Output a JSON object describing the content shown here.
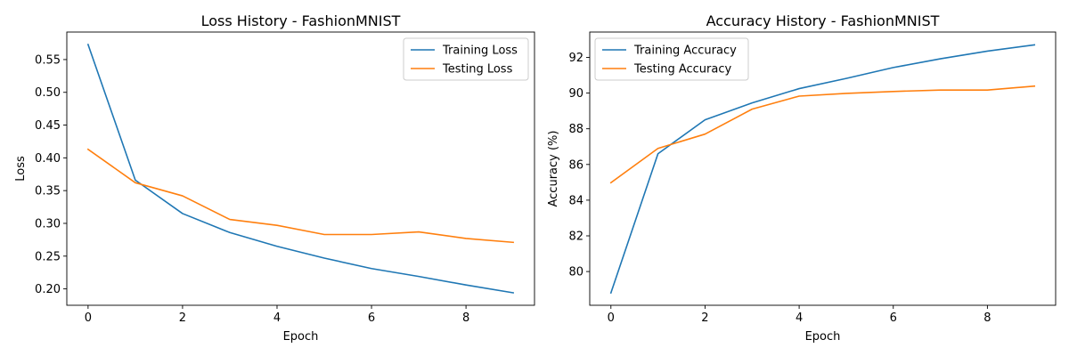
{
  "chart_data": [
    {
      "type": "line",
      "title": "Loss History - FashionMNIST",
      "xlabel": "Epoch",
      "ylabel": "Loss",
      "x": [
        0,
        1,
        2,
        3,
        4,
        5,
        6,
        7,
        8,
        9
      ],
      "xlim": [
        -0.45,
        9.45
      ],
      "ylim": [
        0.175,
        0.592
      ],
      "xticks": [
        0,
        2,
        4,
        6,
        8
      ],
      "yticks": [
        0.2,
        0.25,
        0.3,
        0.35,
        0.4,
        0.45,
        0.5,
        0.55
      ],
      "ytick_labels": [
        "0.20",
        "0.25",
        "0.30",
        "0.35",
        "0.40",
        "0.45",
        "0.50",
        "0.55"
      ],
      "grid": false,
      "legend": "top-right",
      "series": [
        {
          "name": "Training Loss",
          "color": "#1f77b4",
          "values": [
            0.573,
            0.366,
            0.315,
            0.286,
            0.265,
            0.247,
            0.231,
            0.219,
            0.206,
            0.194
          ]
        },
        {
          "name": "Testing Loss",
          "color": "#ff7f0e",
          "values": [
            0.413,
            0.362,
            0.342,
            0.306,
            0.297,
            0.283,
            0.283,
            0.287,
            0.277,
            0.271
          ]
        }
      ]
    },
    {
      "type": "line",
      "title": "Accuracy History - FashionMNIST",
      "xlabel": "Epoch",
      "ylabel": "Accuracy (%)",
      "x": [
        0,
        1,
        2,
        3,
        4,
        5,
        6,
        7,
        8,
        9
      ],
      "xlim": [
        -0.45,
        9.45
      ],
      "ylim": [
        78.11,
        93.42
      ],
      "xticks": [
        0,
        2,
        4,
        6,
        8
      ],
      "yticks": [
        80,
        82,
        84,
        86,
        88,
        90,
        92
      ],
      "ytick_labels": [
        "80",
        "82",
        "84",
        "86",
        "88",
        "90",
        "92"
      ],
      "grid": false,
      "legend": "top-left",
      "series": [
        {
          "name": "Training Accuracy",
          "color": "#1f77b4",
          "values": [
            78.8,
            86.6,
            88.5,
            89.45,
            90.25,
            90.82,
            91.43,
            91.92,
            92.35,
            92.7
          ]
        },
        {
          "name": "Testing Accuracy",
          "color": "#ff7f0e",
          "values": [
            84.98,
            86.9,
            87.7,
            89.1,
            89.83,
            89.98,
            90.09,
            90.17,
            90.17,
            90.39
          ]
        }
      ]
    }
  ]
}
